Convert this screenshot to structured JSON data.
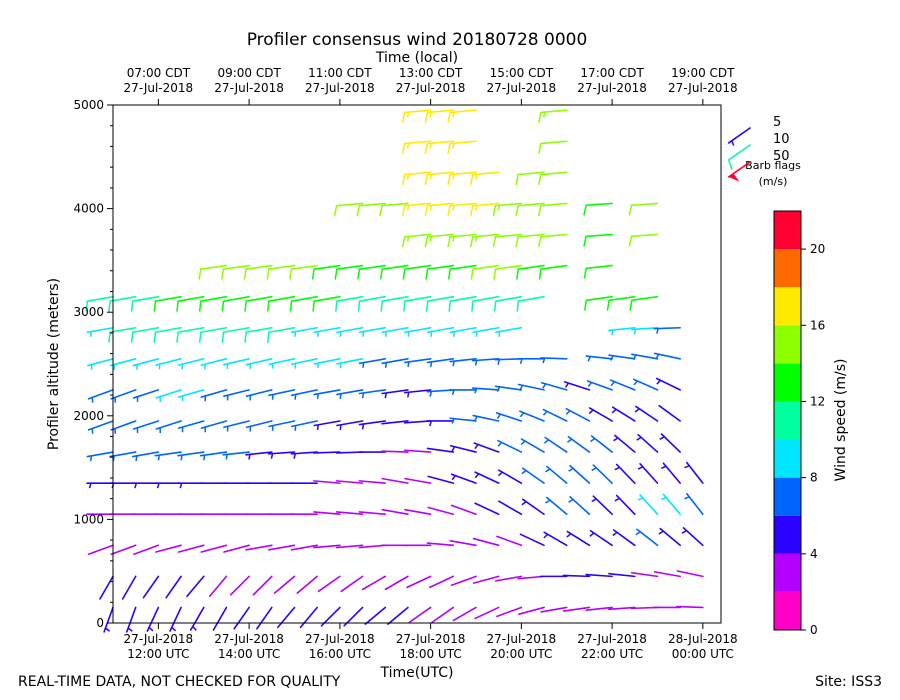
{
  "chart_data": {
    "type": "wind_barb_time_height",
    "title": "Profiler consensus wind 20180728 0000",
    "top_axis_label": "Time (local)",
    "xlabel": "Time(UTC)",
    "ylabel": "Profiler altitude (meters)",
    "xlim_utc_hours": [
      11.0,
      24.4
    ],
    "ylim_m": [
      0,
      5000
    ],
    "y_ticks": [
      0,
      1000,
      2000,
      3000,
      4000,
      5000
    ],
    "y_tick_labels": [
      "0",
      "1000",
      "2000",
      "3000",
      "4000",
      "5000"
    ],
    "bottom_ticks": [
      {
        "t": 12,
        "l1": "27-Jul-2018",
        "l2": "12:00 UTC"
      },
      {
        "t": 14,
        "l1": "27-Jul-2018",
        "l2": "14:00 UTC"
      },
      {
        "t": 16,
        "l1": "27-Jul-2018",
        "l2": "16:00 UTC"
      },
      {
        "t": 18,
        "l1": "27-Jul-2018",
        "l2": "18:00 UTC"
      },
      {
        "t": 20,
        "l1": "27-Jul-2018",
        "l2": "20:00 UTC"
      },
      {
        "t": 22,
        "l1": "27-Jul-2018",
        "l2": "22:00 UTC"
      },
      {
        "t": 24,
        "l1": "28-Jul-2018",
        "l2": "00:00 UTC"
      }
    ],
    "top_ticks": [
      {
        "t": 12,
        "l1": "07:00 CDT",
        "l2": "27-Jul-2018"
      },
      {
        "t": 14,
        "l1": "09:00 CDT",
        "l2": "27-Jul-2018"
      },
      {
        "t": 16,
        "l1": "11:00 CDT",
        "l2": "27-Jul-2018"
      },
      {
        "t": 18,
        "l1": "13:00 CDT",
        "l2": "27-Jul-2018"
      },
      {
        "t": 20,
        "l1": "15:00 CDT",
        "l2": "27-Jul-2018"
      },
      {
        "t": 22,
        "l1": "17:00 CDT",
        "l2": "27-Jul-2018"
      },
      {
        "t": 24,
        "l1": "19:00 CDT",
        "l2": "27-Jul-2018"
      }
    ],
    "profile_times_utc": [
      11.0,
      11.5,
      12.0,
      12.5,
      13.0,
      13.5,
      14.0,
      14.5,
      15.0,
      15.5,
      16.0,
      16.5,
      17.0,
      17.5,
      18.0,
      18.5,
      19.0,
      19.5,
      20.0,
      20.5,
      21.0,
      21.5,
      22.0,
      22.5,
      23.0,
      23.5,
      24.0
    ],
    "wind_profiles": {
      "altitude_m": [
        150,
        450,
        750,
        1050,
        1350,
        1650,
        1950,
        2250,
        2550,
        2850,
        3150,
        3450,
        3750,
        4050,
        4350,
        4650,
        4950
      ],
      "speed_ms": [
        [
          5,
          4,
          2,
          3,
          5,
          6,
          6,
          7,
          8,
          9,
          11,
          null,
          null,
          null,
          null,
          null,
          null
        ],
        [
          5,
          4,
          2,
          3,
          5,
          6,
          7,
          7,
          8,
          10,
          11,
          null,
          null,
          null,
          null,
          null,
          null
        ],
        [
          5,
          4,
          2,
          3,
          5,
          6,
          7,
          7,
          9,
          10,
          11,
          null,
          null,
          null,
          null,
          null,
          null
        ],
        [
          5,
          4,
          2,
          3,
          5,
          6,
          7,
          8,
          9,
          10,
          12,
          null,
          null,
          null,
          null,
          null,
          null
        ],
        [
          5,
          4,
          2,
          3,
          5,
          6,
          7,
          8,
          9,
          10,
          12,
          null,
          null,
          null,
          null,
          null,
          null
        ],
        [
          4,
          3,
          2,
          3,
          4,
          6,
          6,
          7,
          8,
          10,
          12,
          14,
          null,
          null,
          null,
          null,
          null
        ],
        [
          4,
          3,
          2,
          3,
          4,
          6,
          6,
          7,
          8,
          10,
          12,
          14,
          null,
          null,
          null,
          null,
          null
        ],
        [
          4,
          3,
          2,
          3,
          4,
          5,
          6,
          7,
          8,
          10,
          12,
          14,
          null,
          null,
          null,
          null,
          null
        ],
        [
          4,
          3,
          2,
          2,
          4,
          5,
          6,
          7,
          8,
          10,
          12,
          14,
          null,
          null,
          null,
          null,
          null
        ],
        [
          4,
          3,
          2,
          2,
          4,
          5,
          6,
          7,
          8,
          9,
          12,
          14,
          null,
          null,
          null,
          null,
          null
        ],
        [
          4,
          3,
          2,
          2,
          3,
          4,
          5,
          6,
          8,
          9,
          12,
          13,
          null,
          null,
          null,
          null,
          null
        ],
        [
          4,
          3,
          2,
          2,
          3,
          4,
          5,
          6,
          8,
          9,
          11,
          13,
          null,
          14,
          null,
          null,
          null
        ],
        [
          4,
          3,
          2,
          2,
          3,
          4,
          5,
          6,
          7,
          9,
          11,
          13,
          null,
          14,
          null,
          null,
          null
        ],
        [
          4,
          3,
          2,
          2,
          3,
          3,
          4,
          5,
          7,
          9,
          11,
          13,
          null,
          14,
          null,
          null,
          null
        ],
        [
          3,
          3,
          2,
          2,
          3,
          3,
          4,
          5,
          7,
          9,
          11,
          13,
          15,
          16,
          17,
          17,
          17
        ],
        [
          3,
          3,
          2,
          3,
          4,
          4,
          5,
          6,
          7,
          9,
          11,
          13,
          15,
          16,
          17,
          17,
          17
        ],
        [
          3,
          3,
          2,
          3,
          5,
          5,
          6,
          6,
          7,
          9,
          11,
          13,
          15,
          16,
          17,
          17,
          17
        ],
        [
          3,
          3,
          3,
          4,
          5,
          5,
          6,
          6,
          7,
          9,
          11,
          14,
          15,
          16,
          16,
          null,
          null
        ],
        [
          3,
          3,
          3,
          4,
          5,
          6,
          7,
          6,
          7,
          9,
          11,
          14,
          14,
          15,
          null,
          null,
          null
        ],
        [
          3,
          3,
          4,
          5,
          6,
          7,
          7,
          6,
          7,
          null,
          11,
          13,
          14,
          14,
          14,
          null,
          null
        ],
        [
          3,
          4,
          5,
          6,
          7,
          7,
          6,
          6,
          7,
          null,
          null,
          13,
          14,
          14,
          14,
          14,
          15
        ],
        [
          3,
          4,
          5,
          6,
          6,
          7,
          6,
          5,
          null,
          null,
          null,
          null,
          null,
          null,
          null,
          null,
          null
        ],
        [
          3,
          4,
          5,
          5,
          6,
          6,
          5,
          6,
          7,
          null,
          13,
          13,
          13,
          13,
          null,
          null,
          null
        ],
        [
          3,
          4,
          5,
          5,
          5,
          5,
          5,
          6,
          7,
          9,
          12,
          null,
          null,
          null,
          null,
          null,
          null
        ],
        [
          3,
          3,
          7,
          9,
          5,
          5,
          5,
          6,
          7,
          9,
          12,
          null,
          14,
          14,
          null,
          null,
          null
        ],
        [
          3,
          3,
          5,
          8,
          5,
          5,
          4,
          5,
          6,
          7,
          null,
          null,
          null,
          null,
          null,
          null,
          null
        ],
        [
          3,
          3,
          5,
          7,
          5,
          null,
          null,
          null,
          null,
          null,
          null,
          null,
          null,
          null,
          null,
          null,
          null
        ]
      ],
      "direction_deg": [
        [
          200,
          210,
          250,
          270,
          270,
          260,
          250,
          250,
          255,
          260,
          260,
          null,
          null,
          null,
          null,
          null,
          null
        ],
        [
          200,
          210,
          250,
          270,
          270,
          260,
          250,
          250,
          255,
          260,
          260,
          null,
          null,
          null,
          null,
          null,
          null
        ],
        [
          205,
          215,
          250,
          270,
          270,
          260,
          252,
          252,
          255,
          260,
          260,
          null,
          null,
          null,
          null,
          null,
          null
        ],
        [
          205,
          215,
          255,
          270,
          270,
          262,
          252,
          252,
          256,
          260,
          260,
          null,
          null,
          null,
          null,
          null,
          null
        ],
        [
          210,
          220,
          255,
          270,
          270,
          262,
          254,
          254,
          256,
          260,
          260,
          null,
          null,
          null,
          null,
          null,
          null
        ],
        [
          210,
          220,
          255,
          270,
          270,
          262,
          254,
          254,
          256,
          260,
          260,
          262,
          null,
          null,
          null,
          null,
          null
        ],
        [
          215,
          225,
          255,
          270,
          270,
          264,
          256,
          256,
          257,
          260,
          260,
          262,
          null,
          null,
          null,
          null,
          null
        ],
        [
          215,
          225,
          260,
          270,
          270,
          264,
          256,
          256,
          257,
          260,
          260,
          262,
          null,
          null,
          null,
          null,
          null
        ],
        [
          220,
          230,
          260,
          270,
          270,
          266,
          258,
          258,
          258,
          260,
          260,
          262,
          null,
          null,
          null,
          null,
          null
        ],
        [
          220,
          230,
          260,
          270,
          270,
          266,
          258,
          258,
          258,
          260,
          260,
          262,
          null,
          null,
          null,
          null,
          null
        ],
        [
          225,
          235,
          265,
          275,
          275,
          268,
          260,
          260,
          259,
          260,
          260,
          262,
          null,
          null,
          null,
          null,
          null
        ],
        [
          225,
          235,
          265,
          275,
          275,
          268,
          260,
          260,
          259,
          260,
          260,
          262,
          null,
          265,
          null,
          null,
          null
        ],
        [
          230,
          240,
          265,
          275,
          275,
          270,
          262,
          262,
          260,
          260,
          260,
          262,
          null,
          265,
          null,
          null,
          null
        ],
        [
          230,
          240,
          270,
          280,
          280,
          272,
          264,
          262,
          260,
          260,
          260,
          262,
          null,
          265,
          null,
          null,
          null
        ],
        [
          235,
          245,
          270,
          280,
          280,
          274,
          266,
          264,
          262,
          260,
          260,
          262,
          265,
          265,
          265,
          265,
          265
        ],
        [
          235,
          245,
          275,
          285,
          285,
          278,
          270,
          266,
          262,
          260,
          260,
          262,
          265,
          265,
          265,
          265,
          265
        ],
        [
          240,
          250,
          280,
          290,
          290,
          284,
          276,
          270,
          264,
          260,
          260,
          262,
          265,
          265,
          265,
          265,
          265
        ],
        [
          245,
          255,
          285,
          295,
          295,
          290,
          282,
          274,
          266,
          260,
          260,
          262,
          265,
          265,
          265,
          null,
          null
        ],
        [
          250,
          260,
          290,
          300,
          300,
          296,
          288,
          278,
          268,
          260,
          260,
          262,
          265,
          265,
          null,
          null,
          null
        ],
        [
          255,
          265,
          295,
          305,
          305,
          300,
          292,
          282,
          270,
          null,
          260,
          262,
          265,
          265,
          265,
          null,
          null
        ],
        [
          260,
          270,
          300,
          310,
          310,
          304,
          296,
          286,
          272,
          null,
          null,
          262,
          265,
          265,
          265,
          265,
          265
        ],
        [
          262,
          272,
          302,
          312,
          312,
          306,
          298,
          288,
          null,
          null,
          null,
          null,
          null,
          null,
          null,
          null,
          null
        ],
        [
          264,
          274,
          304,
          314,
          314,
          308,
          300,
          290,
          276,
          null,
          262,
          264,
          266,
          266,
          null,
          null,
          null
        ],
        [
          266,
          276,
          306,
          316,
          316,
          310,
          302,
          292,
          278,
          264,
          262,
          null,
          null,
          null,
          null,
          null,
          null
        ],
        [
          268,
          278,
          308,
          318,
          318,
          312,
          304,
          294,
          280,
          266,
          262,
          null,
          266,
          266,
          null,
          null,
          null
        ],
        [
          270,
          280,
          310,
          320,
          320,
          314,
          306,
          296,
          282,
          268,
          null,
          null,
          null,
          null,
          null,
          null,
          null
        ],
        [
          272,
          282,
          312,
          322,
          322,
          null,
          null,
          null,
          null,
          null,
          null,
          null,
          null,
          null,
          null,
          null,
          null
        ]
      ]
    },
    "barb_legend": {
      "entries": [
        {
          "label": "5",
          "speed": 5,
          "color": "#2a00ff"
        },
        {
          "label": "10",
          "speed": 10,
          "color": "#00ff9e"
        },
        {
          "label": "50",
          "speed": 50,
          "color": "#ff0033"
        }
      ],
      "title_line1": "Barb flags",
      "title_line2": "(m/s)"
    },
    "colorbar": {
      "label": "Wind speed (m/s)",
      "range": [
        0,
        22
      ],
      "bounds": [
        0,
        2,
        4,
        6,
        8,
        10,
        12,
        14,
        16,
        18,
        20,
        22
      ],
      "colors": [
        "#ff00c8",
        "#b400ff",
        "#2a00ff",
        "#0064ff",
        "#00e6ff",
        "#00ff9e",
        "#00ff00",
        "#8cff00",
        "#ffea00",
        "#ff6a00",
        "#ff0033"
      ],
      "ticks": [
        0,
        4,
        8,
        12,
        16,
        20
      ],
      "tick_labels": [
        "0",
        "4",
        "8",
        "12",
        "16",
        "20"
      ]
    }
  },
  "footer": {
    "left_note": "REAL-TIME DATA, NOT CHECKED FOR QUALITY",
    "site": "Site: ISS3"
  }
}
